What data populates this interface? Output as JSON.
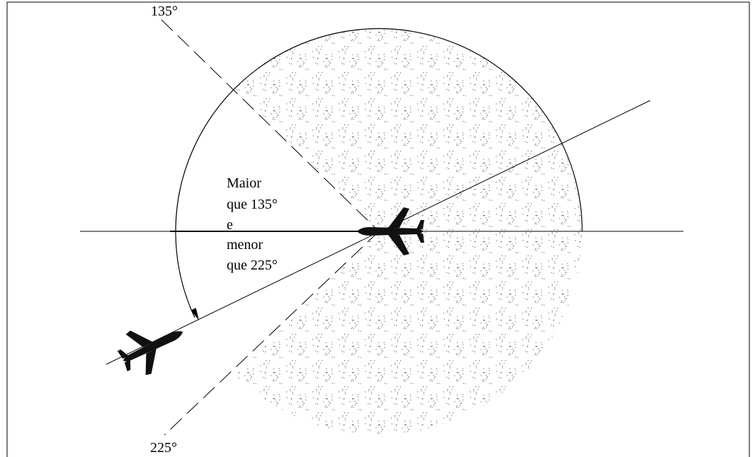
{
  "angle_labels": {
    "top": "135°",
    "bottom": "225°"
  },
  "sector_label": {
    "lines": [
      "Maior",
      "que 135°",
      "e",
      "menor",
      "que 225°"
    ]
  }
}
